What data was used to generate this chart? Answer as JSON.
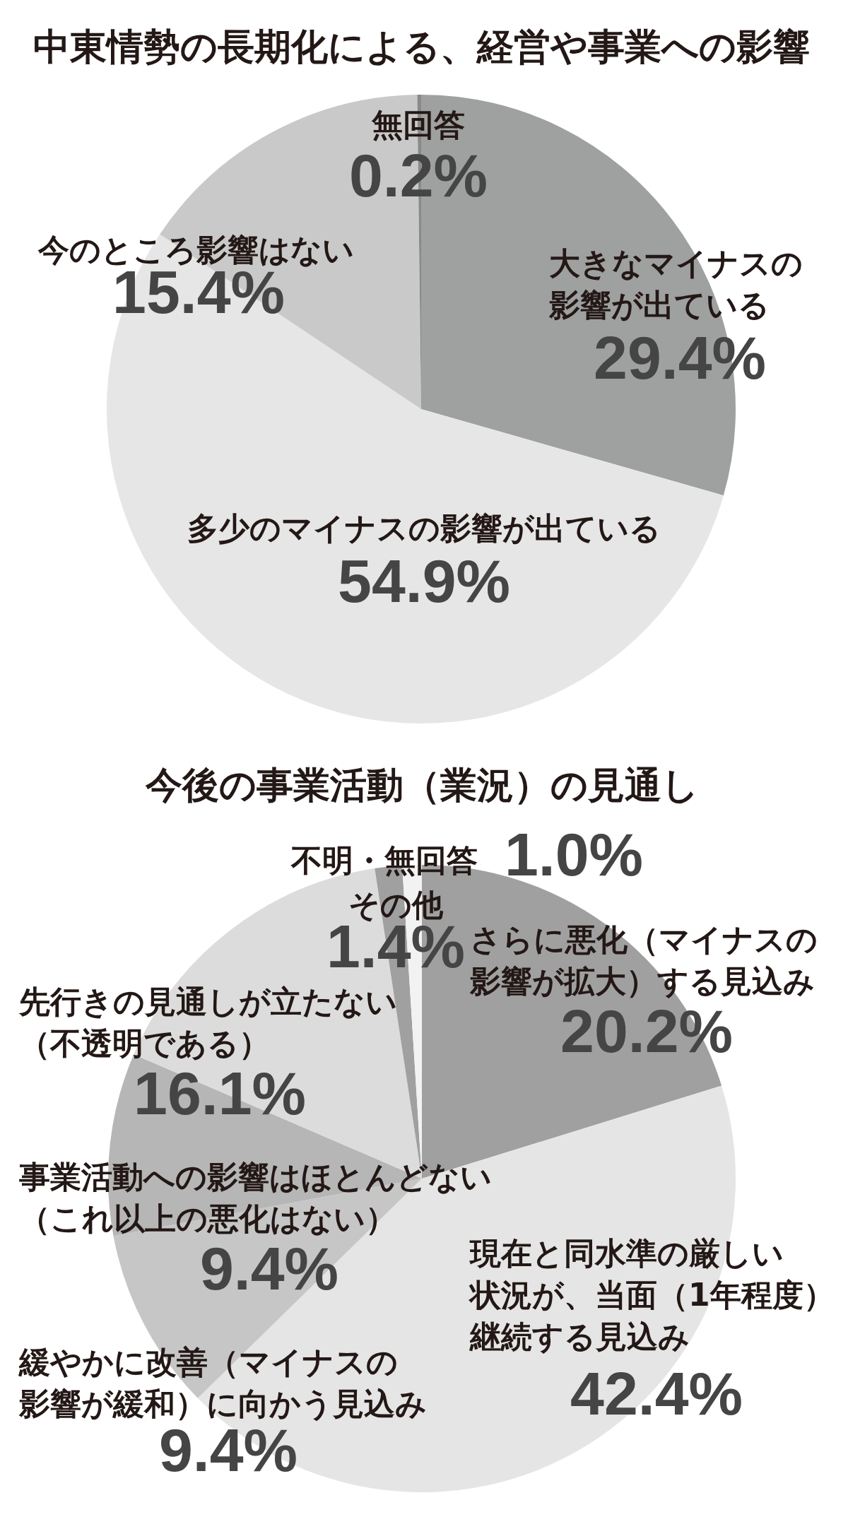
{
  "chart_data": [
    {
      "type": "pie",
      "title": "中東情勢の長期化による、経営や事業への影響",
      "categories": [
        "大きなマイナスの影響が出ている",
        "多少のマイナスの影響が出ている",
        "今のところ影響はない",
        "無回答"
      ],
      "values": [
        29.4,
        54.9,
        15.4,
        0.2
      ],
      "value_labels": [
        "29.4%",
        "54.9%",
        "15.4%",
        "0.2%"
      ],
      "colors": [
        "#9fa0a0",
        "#e6e6e6",
        "#c9c9c9",
        "#8a8a8a"
      ]
    },
    {
      "type": "pie",
      "title": "今後の事業活動（業況）の見通し",
      "categories": [
        "さらに悪化（マイナスの影響が拡大）する見込み",
        "現在と同水準の厳しい状況が、当面（1年程度）継続する見込み",
        "緩やかに改善（マイナスの影響が緩和）に向かう見込み",
        "事業活動への影響はほとんどない（これ以上の悪化はない）",
        "先行きの見通しが立たない（不透明である）",
        "その他",
        "不明・無回答"
      ],
      "values": [
        20.2,
        42.4,
        9.4,
        9.4,
        16.1,
        1.4,
        1.0
      ],
      "value_labels": [
        "20.2%",
        "42.4%",
        "9.4%",
        "9.4%",
        "16.1%",
        "1.4%",
        "1.0%"
      ],
      "colors": [
        "#a0a0a0",
        "#e5e5e5",
        "#c6c6c6",
        "#b6b6b6",
        "#dcdcdc",
        "#a0a0a0",
        "#f2f2f2"
      ]
    }
  ]
}
